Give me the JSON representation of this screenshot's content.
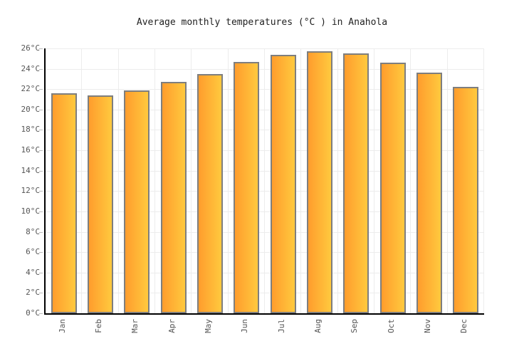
{
  "chart_data": {
    "type": "bar",
    "title": "Average monthly temperatures (°C ) in Anahola",
    "categories": [
      "Jan",
      "Feb",
      "Mar",
      "Apr",
      "May",
      "Jun",
      "Jul",
      "Aug",
      "Sep",
      "Oct",
      "Nov",
      "Dec"
    ],
    "values": [
      21.6,
      21.4,
      21.9,
      22.7,
      23.5,
      24.7,
      25.4,
      25.7,
      25.5,
      24.6,
      23.6,
      22.2
    ],
    "unit": "°C",
    "xlabel": "",
    "ylabel": "",
    "ylim": [
      0,
      26
    ],
    "y_tick_step": 2,
    "y_tick_labels": [
      "0°C",
      "2°C",
      "4°C",
      "6°C",
      "8°C",
      "10°C",
      "12°C",
      "14°C",
      "16°C",
      "18°C",
      "20°C",
      "22°C",
      "24°C",
      "26°C"
    ],
    "grid": "on",
    "legend": "none",
    "colors": {
      "bar_gradient_left": "#FF9D2D",
      "bar_gradient_right": "#FFC93E",
      "bar_border": "#7E7E7E",
      "gridline": "#ECECEC",
      "axis": "#000000",
      "tick": "#BBBBBB",
      "label": "#555555",
      "title": "#222222",
      "background": "#FFFFFF"
    }
  }
}
